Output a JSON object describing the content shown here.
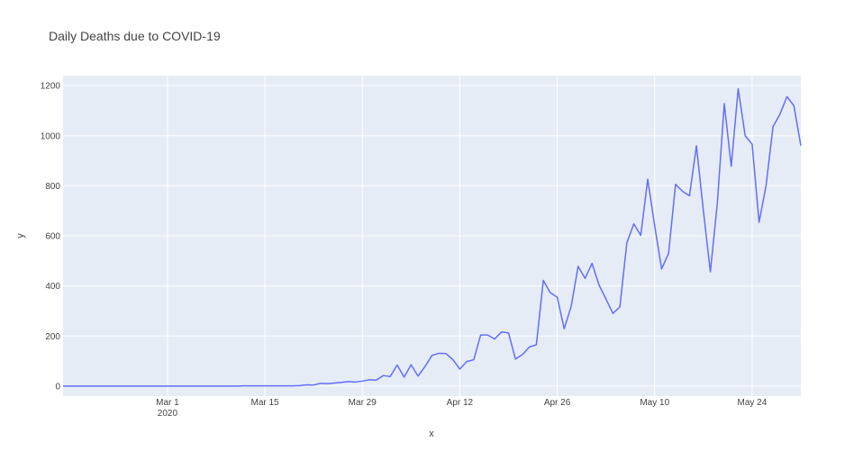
{
  "chart_data": {
    "type": "line",
    "title": "Daily Deaths due to COVID-19",
    "xlabel": "x",
    "ylabel": "y",
    "x_range": [
      "2020-02-15",
      "2020-05-31"
    ],
    "ylim": [
      -40,
      1240
    ],
    "x_ticks": [
      {
        "value": "2020-03-01",
        "label": "Mar 1",
        "sublabel": "2020"
      },
      {
        "value": "2020-03-15",
        "label": "Mar 15",
        "sublabel": ""
      },
      {
        "value": "2020-03-29",
        "label": "Mar 29",
        "sublabel": ""
      },
      {
        "value": "2020-04-12",
        "label": "Apr 12",
        "sublabel": ""
      },
      {
        "value": "2020-04-26",
        "label": "Apr 26",
        "sublabel": ""
      },
      {
        "value": "2020-05-10",
        "label": "May 10",
        "sublabel": ""
      },
      {
        "value": "2020-05-24",
        "label": "May 24",
        "sublabel": ""
      }
    ],
    "y_ticks": [
      0,
      200,
      400,
      600,
      800,
      1000,
      1200
    ],
    "grid": true,
    "colors": {
      "line": "#636efa",
      "plot_bg": "#e5ecf6",
      "grid": "#ffffff",
      "text": "#444444"
    },
    "series": [
      {
        "points": [
          {
            "x": "2020-02-15",
            "y": 0
          },
          {
            "x": "2020-02-16",
            "y": 0
          },
          {
            "x": "2020-02-17",
            "y": 0
          },
          {
            "x": "2020-02-18",
            "y": 0
          },
          {
            "x": "2020-02-19",
            "y": 0
          },
          {
            "x": "2020-02-20",
            "y": 0
          },
          {
            "x": "2020-02-21",
            "y": 0
          },
          {
            "x": "2020-02-22",
            "y": 0
          },
          {
            "x": "2020-02-23",
            "y": 0
          },
          {
            "x": "2020-02-24",
            "y": 0
          },
          {
            "x": "2020-02-25",
            "y": 0
          },
          {
            "x": "2020-02-26",
            "y": 0
          },
          {
            "x": "2020-02-27",
            "y": 0
          },
          {
            "x": "2020-02-28",
            "y": 0
          },
          {
            "x": "2020-02-29",
            "y": 0
          },
          {
            "x": "2020-03-01",
            "y": 0
          },
          {
            "x": "2020-03-02",
            "y": 0
          },
          {
            "x": "2020-03-03",
            "y": 0
          },
          {
            "x": "2020-03-04",
            "y": 0
          },
          {
            "x": "2020-03-05",
            "y": 0
          },
          {
            "x": "2020-03-06",
            "y": 0
          },
          {
            "x": "2020-03-07",
            "y": 0
          },
          {
            "x": "2020-03-08",
            "y": 0
          },
          {
            "x": "2020-03-09",
            "y": 0
          },
          {
            "x": "2020-03-10",
            "y": 0
          },
          {
            "x": "2020-03-11",
            "y": 0
          },
          {
            "x": "2020-03-12",
            "y": 1
          },
          {
            "x": "2020-03-13",
            "y": 1
          },
          {
            "x": "2020-03-14",
            "y": 1
          },
          {
            "x": "2020-03-15",
            "y": 1
          },
          {
            "x": "2020-03-16",
            "y": 1
          },
          {
            "x": "2020-03-17",
            "y": 1
          },
          {
            "x": "2020-03-18",
            "y": 1
          },
          {
            "x": "2020-03-19",
            "y": 1
          },
          {
            "x": "2020-03-20",
            "y": 2
          },
          {
            "x": "2020-03-21",
            "y": 5
          },
          {
            "x": "2020-03-22",
            "y": 4
          },
          {
            "x": "2020-03-23",
            "y": 11
          },
          {
            "x": "2020-03-24",
            "y": 10
          },
          {
            "x": "2020-03-25",
            "y": 12
          },
          {
            "x": "2020-03-26",
            "y": 15
          },
          {
            "x": "2020-03-27",
            "y": 18
          },
          {
            "x": "2020-03-28",
            "y": 16
          },
          {
            "x": "2020-03-29",
            "y": 20
          },
          {
            "x": "2020-03-30",
            "y": 25
          },
          {
            "x": "2020-03-31",
            "y": 24
          },
          {
            "x": "2020-04-01",
            "y": 42
          },
          {
            "x": "2020-04-02",
            "y": 38
          },
          {
            "x": "2020-04-03",
            "y": 84
          },
          {
            "x": "2020-04-04",
            "y": 36
          },
          {
            "x": "2020-04-05",
            "y": 85
          },
          {
            "x": "2020-04-06",
            "y": 40
          },
          {
            "x": "2020-04-07",
            "y": 78
          },
          {
            "x": "2020-04-08",
            "y": 122
          },
          {
            "x": "2020-04-09",
            "y": 131
          },
          {
            "x": "2020-04-10",
            "y": 130
          },
          {
            "x": "2020-04-11",
            "y": 106
          },
          {
            "x": "2020-04-12",
            "y": 68
          },
          {
            "x": "2020-04-13",
            "y": 98
          },
          {
            "x": "2020-04-14",
            "y": 105
          },
          {
            "x": "2020-04-15",
            "y": 204
          },
          {
            "x": "2020-04-16",
            "y": 204
          },
          {
            "x": "2020-04-17",
            "y": 188
          },
          {
            "x": "2020-04-18",
            "y": 216
          },
          {
            "x": "2020-04-19",
            "y": 212
          },
          {
            "x": "2020-04-20",
            "y": 108
          },
          {
            "x": "2020-04-21",
            "y": 126
          },
          {
            "x": "2020-04-22",
            "y": 156
          },
          {
            "x": "2020-04-23",
            "y": 165
          },
          {
            "x": "2020-04-24",
            "y": 422
          },
          {
            "x": "2020-04-25",
            "y": 373
          },
          {
            "x": "2020-04-26",
            "y": 355
          },
          {
            "x": "2020-04-27",
            "y": 229
          },
          {
            "x": "2020-04-28",
            "y": 318
          },
          {
            "x": "2020-04-29",
            "y": 478
          },
          {
            "x": "2020-04-30",
            "y": 430
          },
          {
            "x": "2020-05-01",
            "y": 490
          },
          {
            "x": "2020-05-02",
            "y": 404
          },
          {
            "x": "2020-05-03",
            "y": 348
          },
          {
            "x": "2020-05-04",
            "y": 290
          },
          {
            "x": "2020-05-05",
            "y": 316
          },
          {
            "x": "2020-05-06",
            "y": 572
          },
          {
            "x": "2020-05-07",
            "y": 648
          },
          {
            "x": "2020-05-08",
            "y": 602
          },
          {
            "x": "2020-05-09",
            "y": 826
          },
          {
            "x": "2020-05-10",
            "y": 640
          },
          {
            "x": "2020-05-11",
            "y": 468
          },
          {
            "x": "2020-05-12",
            "y": 530
          },
          {
            "x": "2020-05-13",
            "y": 806
          },
          {
            "x": "2020-05-14",
            "y": 778
          },
          {
            "x": "2020-05-15",
            "y": 760
          },
          {
            "x": "2020-05-16",
            "y": 960
          },
          {
            "x": "2020-05-17",
            "y": 700
          },
          {
            "x": "2020-05-18",
            "y": 456
          },
          {
            "x": "2020-05-19",
            "y": 730
          },
          {
            "x": "2020-05-20",
            "y": 1128
          },
          {
            "x": "2020-05-21",
            "y": 878
          },
          {
            "x": "2020-05-22",
            "y": 1188
          },
          {
            "x": "2020-05-23",
            "y": 1000
          },
          {
            "x": "2020-05-24",
            "y": 966
          },
          {
            "x": "2020-05-25",
            "y": 654
          },
          {
            "x": "2020-05-26",
            "y": 800
          },
          {
            "x": "2020-05-27",
            "y": 1036
          },
          {
            "x": "2020-05-28",
            "y": 1086
          },
          {
            "x": "2020-05-29",
            "y": 1156
          },
          {
            "x": "2020-05-30",
            "y": 1120
          },
          {
            "x": "2020-05-31",
            "y": 960
          }
        ]
      }
    ]
  }
}
